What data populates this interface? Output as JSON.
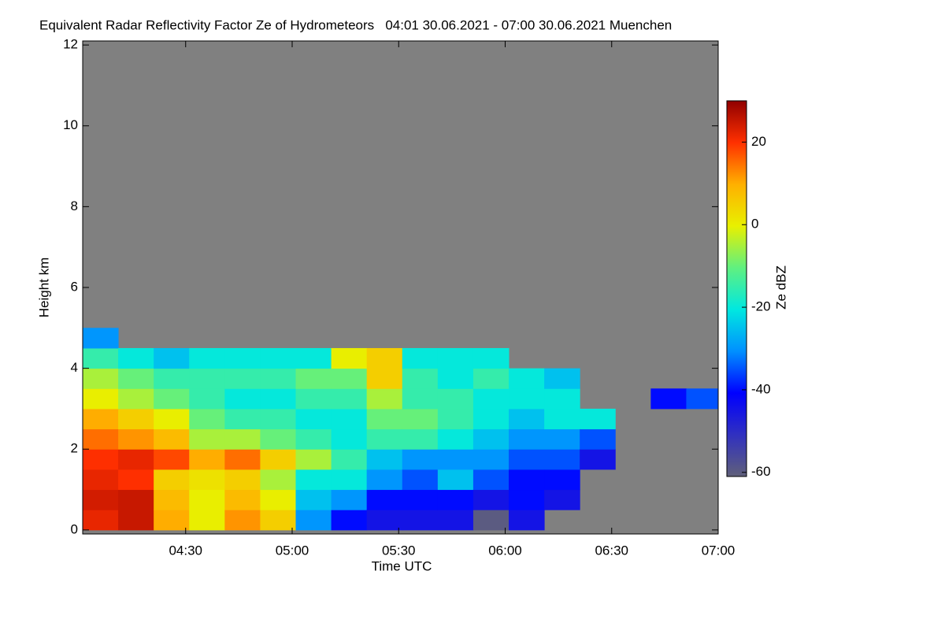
{
  "chart_data": {
    "type": "heatmap",
    "title": "Equivalent Radar Reflectivity Factor Ze of Hydrometeors   04:01 30.06.2021 - 07:00 30.06.2021 Muenchen",
    "x_label": "Time UTC",
    "y_label": "Height km",
    "colorbar_label": "Ze dBZ",
    "x": [
      "04:01",
      "04:11",
      "04:21",
      "04:31",
      "04:41",
      "04:51",
      "05:01",
      "05:11",
      "05:21",
      "05:31",
      "05:41",
      "05:51",
      "06:01",
      "06:11",
      "06:21",
      "06:31",
      "06:41",
      "06:51",
      "07:00"
    ],
    "y": [
      0,
      0.5,
      1,
      1.5,
      2,
      2.5,
      3,
      3.5,
      4,
      4.5,
      5
    ],
    "z": [
      [
        22,
        24,
        22,
        20,
        15,
        10,
        0,
        -5,
        -15,
        -30
      ],
      [
        25,
        25,
        20,
        22,
        12,
        5,
        -5,
        -10,
        -20,
        null
      ],
      [
        10,
        8,
        5,
        18,
        8,
        0,
        -10,
        -15,
        -25,
        null
      ],
      [
        0,
        0,
        2,
        10,
        -5,
        -10,
        -15,
        -15,
        -20,
        null
      ],
      [
        12,
        8,
        5,
        15,
        -5,
        -15,
        -20,
        -15,
        -20,
        null
      ],
      [
        5,
        0,
        -5,
        5,
        -10,
        -15,
        -20,
        -15,
        -20,
        null
      ],
      [
        -30,
        -25,
        -20,
        -5,
        -15,
        -20,
        -15,
        -10,
        -20,
        null
      ],
      [
        -40,
        -30,
        -20,
        -15,
        -20,
        -20,
        -15,
        -10,
        0,
        null
      ],
      [
        -45,
        -40,
        -30,
        -25,
        -15,
        -10,
        -5,
        5,
        5,
        null
      ],
      [
        -45,
        -40,
        -35,
        -30,
        -15,
        -10,
        -15,
        -15,
        -20,
        null
      ],
      [
        -45,
        -40,
        -25,
        -30,
        -20,
        -15,
        -15,
        -20,
        -20,
        null
      ],
      [
        -60,
        -45,
        -35,
        -30,
        -25,
        -20,
        -20,
        -15,
        -20,
        null
      ],
      [
        -45,
        -40,
        -40,
        -35,
        -30,
        -25,
        -20,
        -20,
        null,
        null
      ],
      [
        null,
        -45,
        -40,
        -35,
        -30,
        -20,
        -20,
        -25,
        null,
        null
      ],
      [
        null,
        null,
        null,
        -45,
        -35,
        -20,
        null,
        null,
        null,
        null
      ],
      [
        null,
        null,
        null,
        null,
        null,
        null,
        null,
        null,
        null,
        null
      ],
      [
        null,
        null,
        null,
        null,
        null,
        null,
        -40,
        null,
        null,
        null
      ],
      [
        null,
        null,
        null,
        null,
        null,
        null,
        -35,
        null,
        null,
        null
      ]
    ],
    "xlim": [
      "04:01",
      "07:00"
    ],
    "xticks": [
      "04:30",
      "05:00",
      "05:30",
      "06:00",
      "06:30",
      "07:00"
    ],
    "ylim": [
      -0.1,
      12.1
    ],
    "yticks": [
      0,
      2,
      4,
      6,
      8,
      10,
      12
    ],
    "zlim": [
      -61,
      30
    ],
    "zticks": [
      -60,
      -40,
      -20,
      0,
      20
    ],
    "colormap": [
      "#60607a",
      "#3030c0",
      "#0000ff",
      "#0090ff",
      "#00e8e0",
      "#60f080",
      "#e8f000",
      "#ffb000",
      "#ff3000",
      "#900000"
    ],
    "no_data_color": "#808080"
  }
}
